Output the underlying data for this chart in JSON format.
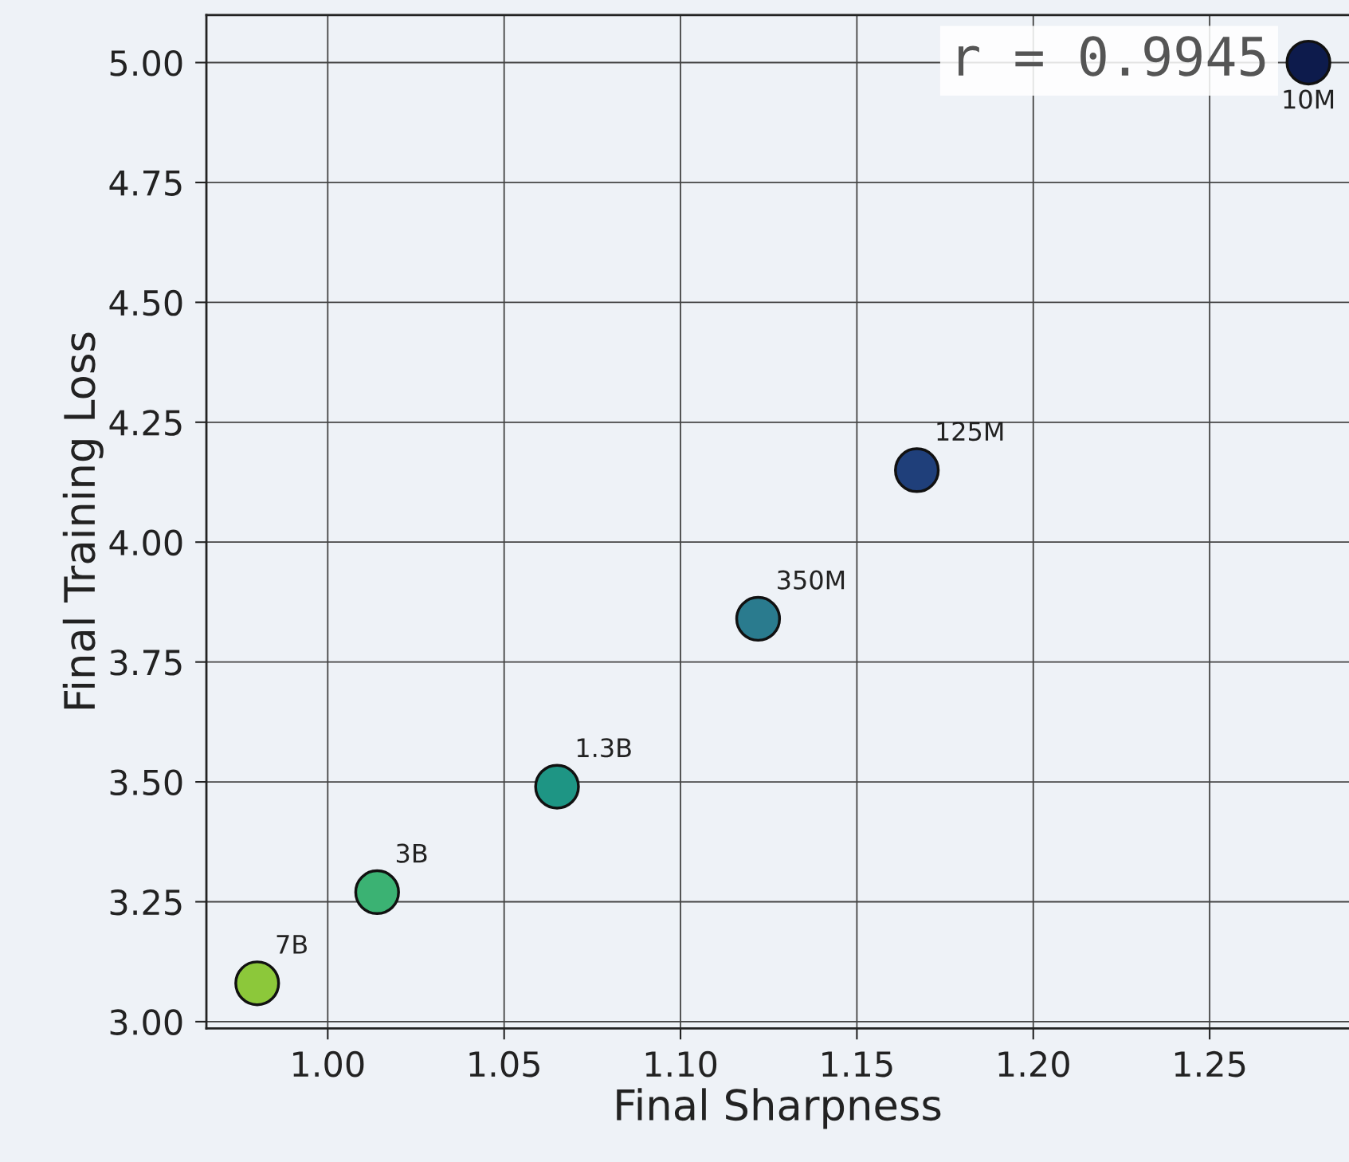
{
  "chart_data": {
    "type": "scatter",
    "xlabel": "Final Sharpness",
    "ylabel": "Final Training Loss",
    "x": [
      1.278,
      1.167,
      1.122,
      1.065,
      1.014,
      0.98
    ],
    "series": [
      {
        "values": [
          5.0,
          4.15,
          3.84,
          3.49,
          3.27,
          3.08
        ],
        "colors": [
          "#0d1b4c",
          "#1f3f7a",
          "#2a7b8e",
          "#1e9584",
          "#3bb273",
          "#8cc83a"
        ]
      }
    ],
    "xlim": [
      0.9656,
      1.2895
    ],
    "ylim": [
      2.986,
      5.099
    ],
    "xticks": [
      {
        "value": 1.0,
        "label": "1.00"
      },
      {
        "value": 1.05,
        "label": "1.05"
      },
      {
        "value": 1.1,
        "label": "1.10"
      },
      {
        "value": 1.15,
        "label": "1.15"
      },
      {
        "value": 1.2,
        "label": "1.20"
      },
      {
        "value": 1.25,
        "label": "1.25"
      }
    ],
    "yticks": [
      {
        "value": 3.0,
        "label": "3.00"
      },
      {
        "value": 3.25,
        "label": "3.25"
      },
      {
        "value": 3.5,
        "label": "3.50"
      },
      {
        "value": 3.75,
        "label": "3.75"
      },
      {
        "value": 4.0,
        "label": "4.00"
      },
      {
        "value": 4.25,
        "label": "4.25"
      },
      {
        "value": 4.5,
        "label": "4.50"
      },
      {
        "value": 4.75,
        "label": "4.75"
      },
      {
        "value": 5.0,
        "label": "5.00"
      }
    ],
    "grid": true,
    "marker": "circle",
    "annotations": [
      {
        "text": "10M",
        "x": 1.278,
        "y": 5.0
      },
      {
        "text": "125M",
        "x": 1.167,
        "y": 4.15
      },
      {
        "text": "350M",
        "x": 1.122,
        "y": 3.84
      },
      {
        "text": "1.3B",
        "x": 1.065,
        "y": 3.49
      },
      {
        "text": "3B",
        "x": 1.014,
        "y": 3.27
      },
      {
        "text": "7B",
        "x": 0.98,
        "y": 3.08
      },
      "r = 0.9945"
    ]
  }
}
